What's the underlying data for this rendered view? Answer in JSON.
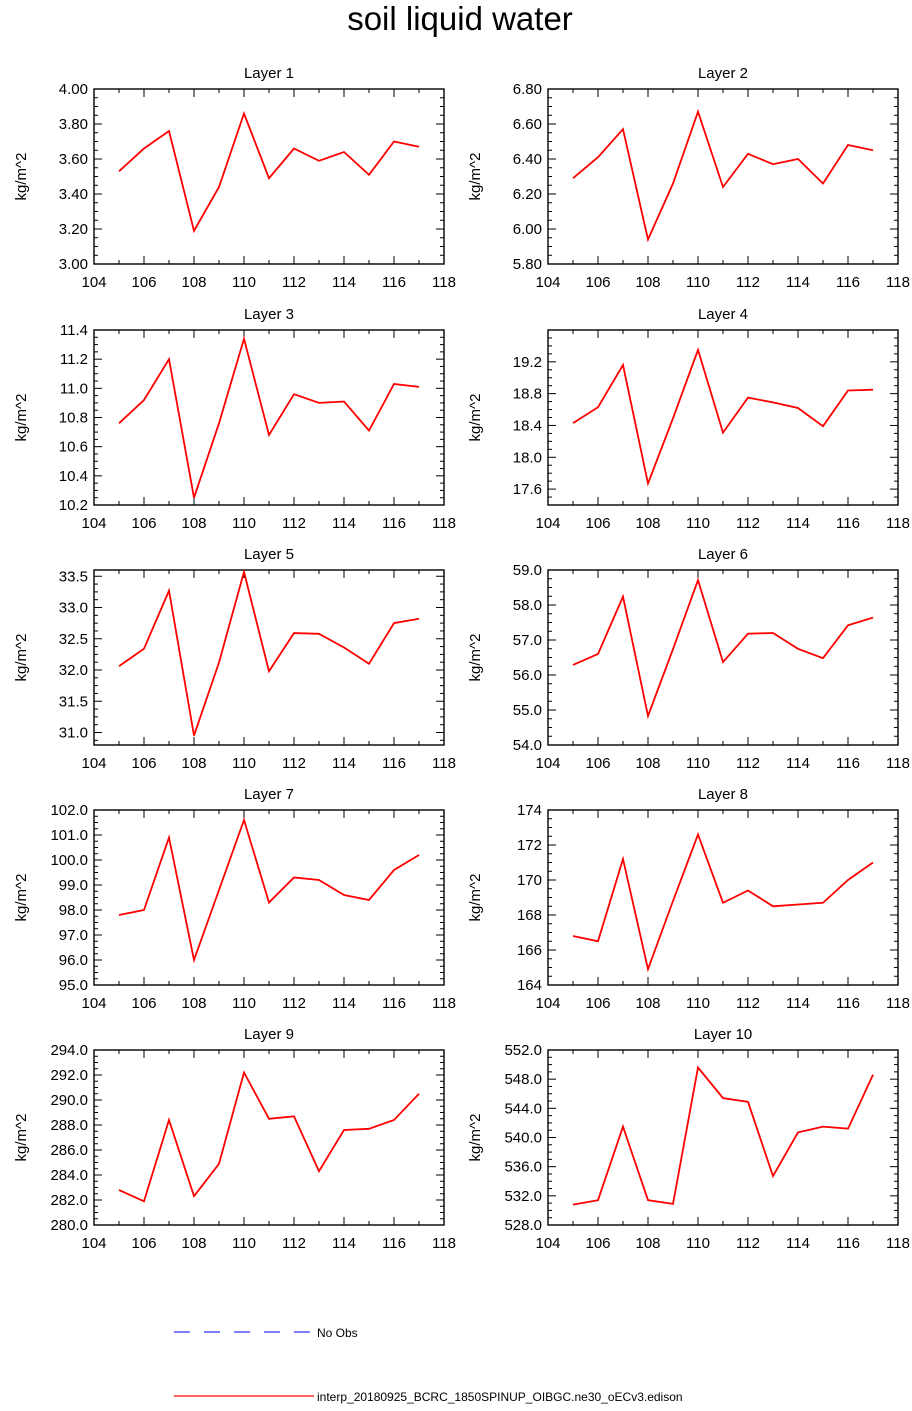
{
  "title": "soil liquid water",
  "legend": [
    {
      "label": "No Obs",
      "color": "#3333ff",
      "style": "dashed"
    },
    {
      "label": "interp_20180925_BCRC_1850SPINUP_OIBGC.ne30_oECv3.edison",
      "color": "#ff0000",
      "style": "solid"
    }
  ],
  "chart_data": [
    {
      "type": "line",
      "title": "Layer 1",
      "ylabel": "kg/m^2",
      "xlim": [
        104,
        118
      ],
      "xticks": [
        "104",
        "106",
        "108",
        "110",
        "112",
        "114",
        "116",
        "118"
      ],
      "ylim": [
        3.0,
        4.0
      ],
      "yticks": [
        "3.00",
        "3.20",
        "3.40",
        "3.60",
        "3.80",
        "4.00"
      ],
      "x": [
        105,
        106,
        107,
        108,
        109,
        110,
        111,
        112,
        113,
        114,
        115,
        116,
        117
      ],
      "series": [
        {
          "values": [
            3.53,
            3.66,
            3.76,
            3.19,
            3.44,
            3.86,
            3.49,
            3.66,
            3.59,
            3.64,
            3.51,
            3.7,
            3.67
          ],
          "color": "#ff0000"
        }
      ]
    },
    {
      "type": "line",
      "title": "Layer 2",
      "ylabel": "kg/m^2",
      "xlim": [
        104,
        118
      ],
      "xticks": [
        "104",
        "106",
        "108",
        "110",
        "112",
        "114",
        "116",
        "118"
      ],
      "ylim": [
        5.8,
        6.8
      ],
      "yticks": [
        "5.80",
        "6.00",
        "6.20",
        "6.40",
        "6.60",
        "6.80"
      ],
      "x": [
        105,
        106,
        107,
        108,
        109,
        110,
        111,
        112,
        113,
        114,
        115,
        116,
        117
      ],
      "series": [
        {
          "values": [
            6.29,
            6.41,
            6.57,
            5.94,
            6.26,
            6.67,
            6.24,
            6.43,
            6.37,
            6.4,
            6.26,
            6.48,
            6.45
          ],
          "color": "#ff0000"
        }
      ]
    },
    {
      "type": "line",
      "title": "Layer 3",
      "ylabel": "kg/m^2",
      "xlim": [
        104,
        118
      ],
      "xticks": [
        "104",
        "106",
        "108",
        "110",
        "112",
        "114",
        "116",
        "118"
      ],
      "ylim": [
        10.2,
        11.4
      ],
      "yticks": [
        "10.2",
        "10.4",
        "10.6",
        "10.8",
        "11.0",
        "11.2",
        "11.4"
      ],
      "x": [
        105,
        106,
        107,
        108,
        109,
        110,
        111,
        112,
        113,
        114,
        115,
        116,
        117
      ],
      "series": [
        {
          "values": [
            10.76,
            10.92,
            11.2,
            10.25,
            10.76,
            11.34,
            10.68,
            10.96,
            10.9,
            10.91,
            10.71,
            11.03,
            11.01
          ],
          "color": "#ff0000"
        }
      ]
    },
    {
      "type": "line",
      "title": "Layer 4",
      "ylabel": "kg/m^2",
      "xlim": [
        104,
        118
      ],
      "xticks": [
        "104",
        "106",
        "108",
        "110",
        "112",
        "114",
        "116",
        "118"
      ],
      "ylim": [
        17.4,
        19.6
      ],
      "yticks": [
        "17.6",
        "18.0",
        "18.4",
        "18.8",
        "19.2"
      ],
      "x": [
        105,
        106,
        107,
        108,
        109,
        110,
        111,
        112,
        113,
        114,
        115,
        116,
        117
      ],
      "series": [
        {
          "values": [
            18.43,
            18.63,
            19.16,
            17.67,
            18.49,
            19.35,
            18.31,
            18.75,
            18.69,
            18.62,
            18.39,
            18.84,
            18.85
          ],
          "color": "#ff0000"
        }
      ]
    },
    {
      "type": "line",
      "title": "Layer 5",
      "ylabel": "kg/m^2",
      "xlim": [
        104,
        118
      ],
      "xticks": [
        "104",
        "106",
        "108",
        "110",
        "112",
        "114",
        "116",
        "118"
      ],
      "ylim": [
        30.8,
        33.6
      ],
      "yticks": [
        "31.0",
        "31.5",
        "32.0",
        "32.5",
        "33.0",
        "33.5"
      ],
      "x": [
        105,
        106,
        107,
        108,
        109,
        110,
        111,
        112,
        113,
        114,
        115,
        116,
        117
      ],
      "series": [
        {
          "values": [
            32.06,
            32.34,
            33.27,
            30.95,
            32.12,
            33.57,
            31.98,
            32.59,
            32.58,
            32.36,
            32.1,
            32.75,
            32.82
          ],
          "color": "#ff0000"
        }
      ]
    },
    {
      "type": "line",
      "title": "Layer 6",
      "ylabel": "kg/m^2",
      "xlim": [
        104,
        118
      ],
      "xticks": [
        "104",
        "106",
        "108",
        "110",
        "112",
        "114",
        "116",
        "118"
      ],
      "ylim": [
        54.0,
        59.0
      ],
      "yticks": [
        "54.0",
        "55.0",
        "56.0",
        "57.0",
        "58.0",
        "59.0"
      ],
      "x": [
        105,
        106,
        107,
        108,
        109,
        110,
        111,
        112,
        113,
        114,
        115,
        116,
        117
      ],
      "series": [
        {
          "values": [
            56.29,
            56.6,
            58.24,
            54.83,
            56.74,
            58.71,
            56.37,
            57.18,
            57.2,
            56.75,
            56.48,
            57.42,
            57.64
          ],
          "color": "#ff0000"
        }
      ]
    },
    {
      "type": "line",
      "title": "Layer 7",
      "ylabel": "kg/m^2",
      "xlim": [
        104,
        118
      ],
      "xticks": [
        "104",
        "106",
        "108",
        "110",
        "112",
        "114",
        "116",
        "118"
      ],
      "ylim": [
        95.0,
        102.0
      ],
      "yticks": [
        "95.0",
        "96.0",
        "97.0",
        "98.0",
        "99.0",
        "100.0",
        "101.0",
        "102.0"
      ],
      "x": [
        105,
        106,
        107,
        108,
        109,
        110,
        111,
        112,
        113,
        114,
        115,
        116,
        117
      ],
      "series": [
        {
          "values": [
            97.8,
            98.0,
            100.9,
            96.0,
            98.8,
            101.6,
            98.3,
            99.3,
            99.2,
            98.6,
            98.4,
            99.6,
            100.2
          ],
          "color": "#ff0000"
        }
      ]
    },
    {
      "type": "line",
      "title": "Layer 8",
      "ylabel": "kg/m^2",
      "xlim": [
        104,
        118
      ],
      "xticks": [
        "104",
        "106",
        "108",
        "110",
        "112",
        "114",
        "116",
        "118"
      ],
      "ylim": [
        164,
        174
      ],
      "yticks": [
        "164",
        "166",
        "168",
        "170",
        "172",
        "174"
      ],
      "x": [
        105,
        106,
        107,
        108,
        109,
        110,
        111,
        112,
        113,
        114,
        115,
        116,
        117
      ],
      "series": [
        {
          "values": [
            166.8,
            166.5,
            171.2,
            164.9,
            168.8,
            172.6,
            168.7,
            169.4,
            168.5,
            168.6,
            168.7,
            170.0,
            171.0
          ],
          "color": "#ff0000"
        }
      ]
    },
    {
      "type": "line",
      "title": "Layer 9",
      "ylabel": "kg/m^2",
      "xlim": [
        104,
        118
      ],
      "xticks": [
        "104",
        "106",
        "108",
        "110",
        "112",
        "114",
        "116",
        "118"
      ],
      "ylim": [
        280.0,
        294.0
      ],
      "yticks": [
        "280.0",
        "282.0",
        "284.0",
        "286.0",
        "288.0",
        "290.0",
        "292.0",
        "294.0"
      ],
      "x": [
        105,
        106,
        107,
        108,
        109,
        110,
        111,
        112,
        113,
        114,
        115,
        116,
        117
      ],
      "series": [
        {
          "values": [
            282.8,
            281.9,
            288.4,
            282.3,
            284.9,
            292.2,
            288.5,
            288.7,
            284.3,
            287.6,
            287.7,
            288.4,
            290.5
          ],
          "color": "#ff0000"
        }
      ]
    },
    {
      "type": "line",
      "title": "Layer 10",
      "ylabel": "kg/m^2",
      "xlim": [
        104,
        118
      ],
      "xticks": [
        "104",
        "106",
        "108",
        "110",
        "112",
        "114",
        "116",
        "118"
      ],
      "ylim": [
        528.0,
        552.0
      ],
      "yticks": [
        "528.0",
        "532.0",
        "536.0",
        "540.0",
        "544.0",
        "548.0",
        "552.0"
      ],
      "x": [
        105,
        106,
        107,
        108,
        109,
        110,
        111,
        112,
        113,
        114,
        115,
        116,
        117
      ],
      "series": [
        {
          "values": [
            530.8,
            531.4,
            541.5,
            531.4,
            530.9,
            549.6,
            545.4,
            544.9,
            534.7,
            540.7,
            541.5,
            541.2,
            548.6
          ],
          "color": "#ff0000"
        }
      ]
    }
  ]
}
